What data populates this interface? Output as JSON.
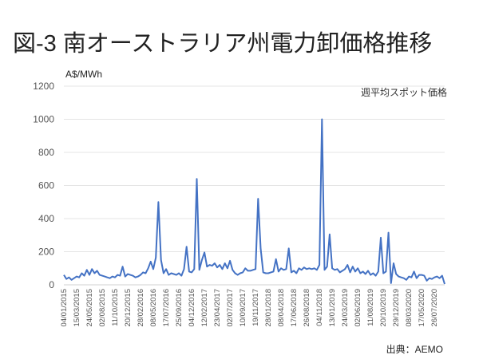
{
  "title": "図-3 南オーストラリア州電力卸価格推移",
  "source": "出典：AEMO",
  "chart_data": {
    "type": "line",
    "title": "図-3 南オーストラリア州電力卸価格推移",
    "ylabel": "A$/MWh",
    "xlabel": "",
    "ylim": [
      0,
      1200
    ],
    "yticks": [
      0,
      200,
      400,
      600,
      800,
      1000,
      1200
    ],
    "grid": true,
    "legend_placement": "top-right",
    "color": "#4472C4",
    "series": [
      {
        "name": "週平均スポット価格",
        "note": "approximate values, sampled every two weeks",
        "values": [
          60,
          35,
          45,
          30,
          40,
          50,
          45,
          70,
          55,
          90,
          60,
          95,
          70,
          85,
          60,
          55,
          50,
          45,
          40,
          50,
          45,
          60,
          55,
          110,
          50,
          65,
          60,
          55,
          45,
          50,
          60,
          75,
          70,
          100,
          140,
          95,
          165,
          500,
          150,
          70,
          95,
          60,
          70,
          65,
          60,
          70,
          55,
          95,
          230,
          80,
          75,
          95,
          640,
          90,
          150,
          195,
          110,
          120,
          115,
          130,
          105,
          120,
          95,
          130,
          100,
          145,
          90,
          70,
          60,
          70,
          75,
          100,
          85,
          85,
          90,
          95,
          520,
          220,
          75,
          70,
          70,
          75,
          80,
          155,
          80,
          100,
          90,
          95,
          220,
          75,
          85,
          70,
          100,
          90,
          105,
          95,
          100,
          95,
          100,
          90,
          120,
          1000,
          90,
          110,
          305,
          100,
          90,
          95,
          75,
          85,
          95,
          120,
          75,
          110,
          80,
          100,
          70,
          80,
          65,
          85,
          60,
          70,
          55,
          80,
          285,
          70,
          80,
          315,
          10,
          130,
          65,
          50,
          45,
          40,
          30,
          50,
          45,
          80,
          40,
          60,
          60,
          55,
          25,
          40,
          35,
          45,
          50,
          40,
          55,
          5
        ]
      }
    ],
    "x_tick_every": 5,
    "x_tick_labels": [
      "04/01/2015",
      "15/03/2015",
      "24/05/2015",
      "02/08/2015",
      "11/10/2015",
      "20/12/2015",
      "28/02/2016",
      "08/05/2016",
      "17/07/2016",
      "25/09/2016",
      "04/12/2016",
      "12/02/2017",
      "23/04/2017",
      "02/07/2017",
      "10/09/2017",
      "19/11/2017",
      "28/01/2018",
      "08/04/2018",
      "17/06/2018",
      "26/08/2018",
      "04/11/2018",
      "13/01/2019",
      "24/03/2019",
      "02/06/2019",
      "11/08/2019",
      "20/10/2019",
      "29/12/2019",
      "08/03/2020",
      "17/05/2020",
      "26/07/2020",
      "04/10/2020"
    ]
  }
}
